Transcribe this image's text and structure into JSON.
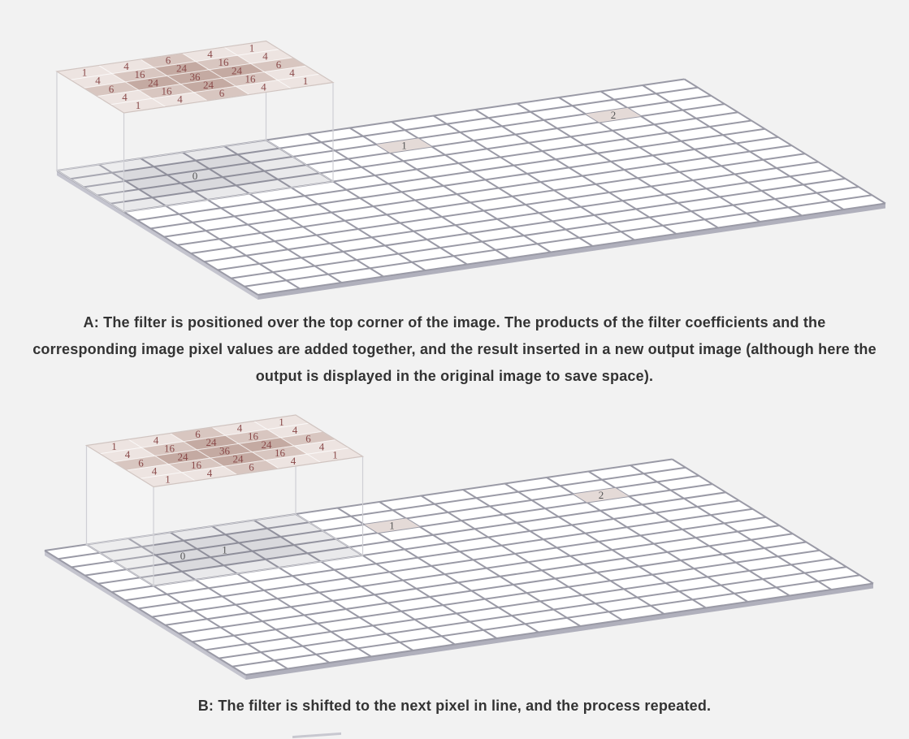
{
  "kernel": {
    "coefficients": [
      [
        1,
        4,
        6,
        4,
        1
      ],
      [
        4,
        16,
        24,
        16,
        4
      ],
      [
        6,
        24,
        36,
        24,
        6
      ],
      [
        4,
        16,
        24,
        16,
        4
      ],
      [
        1,
        4,
        6,
        4,
        1
      ]
    ]
  },
  "panel_a": {
    "output_labels": [
      "0",
      "1",
      "2"
    ],
    "caption": "A: The filter is positioned over the top corner of the image. The products of the filter coefficients and the corresponding image pixel values are added together, and the result inserted in a new output image (although here the output is displayed in the original image to save space)."
  },
  "panel_b": {
    "output_labels": [
      "0",
      "1",
      "1",
      "2"
    ],
    "caption": "B: The filter is shifted to the next pixel in line, and the process repeated."
  },
  "colors": {
    "background": "#f2f2f2",
    "grid_line": "#9a9aa6",
    "tile": "#ffffff",
    "kernel_light": "#ede4e1",
    "kernel_mid": "#d8c6c0",
    "kernel_dark": "#c4aaa2",
    "kernel_text": "#8a4a4a",
    "caption_text": "#333333"
  }
}
